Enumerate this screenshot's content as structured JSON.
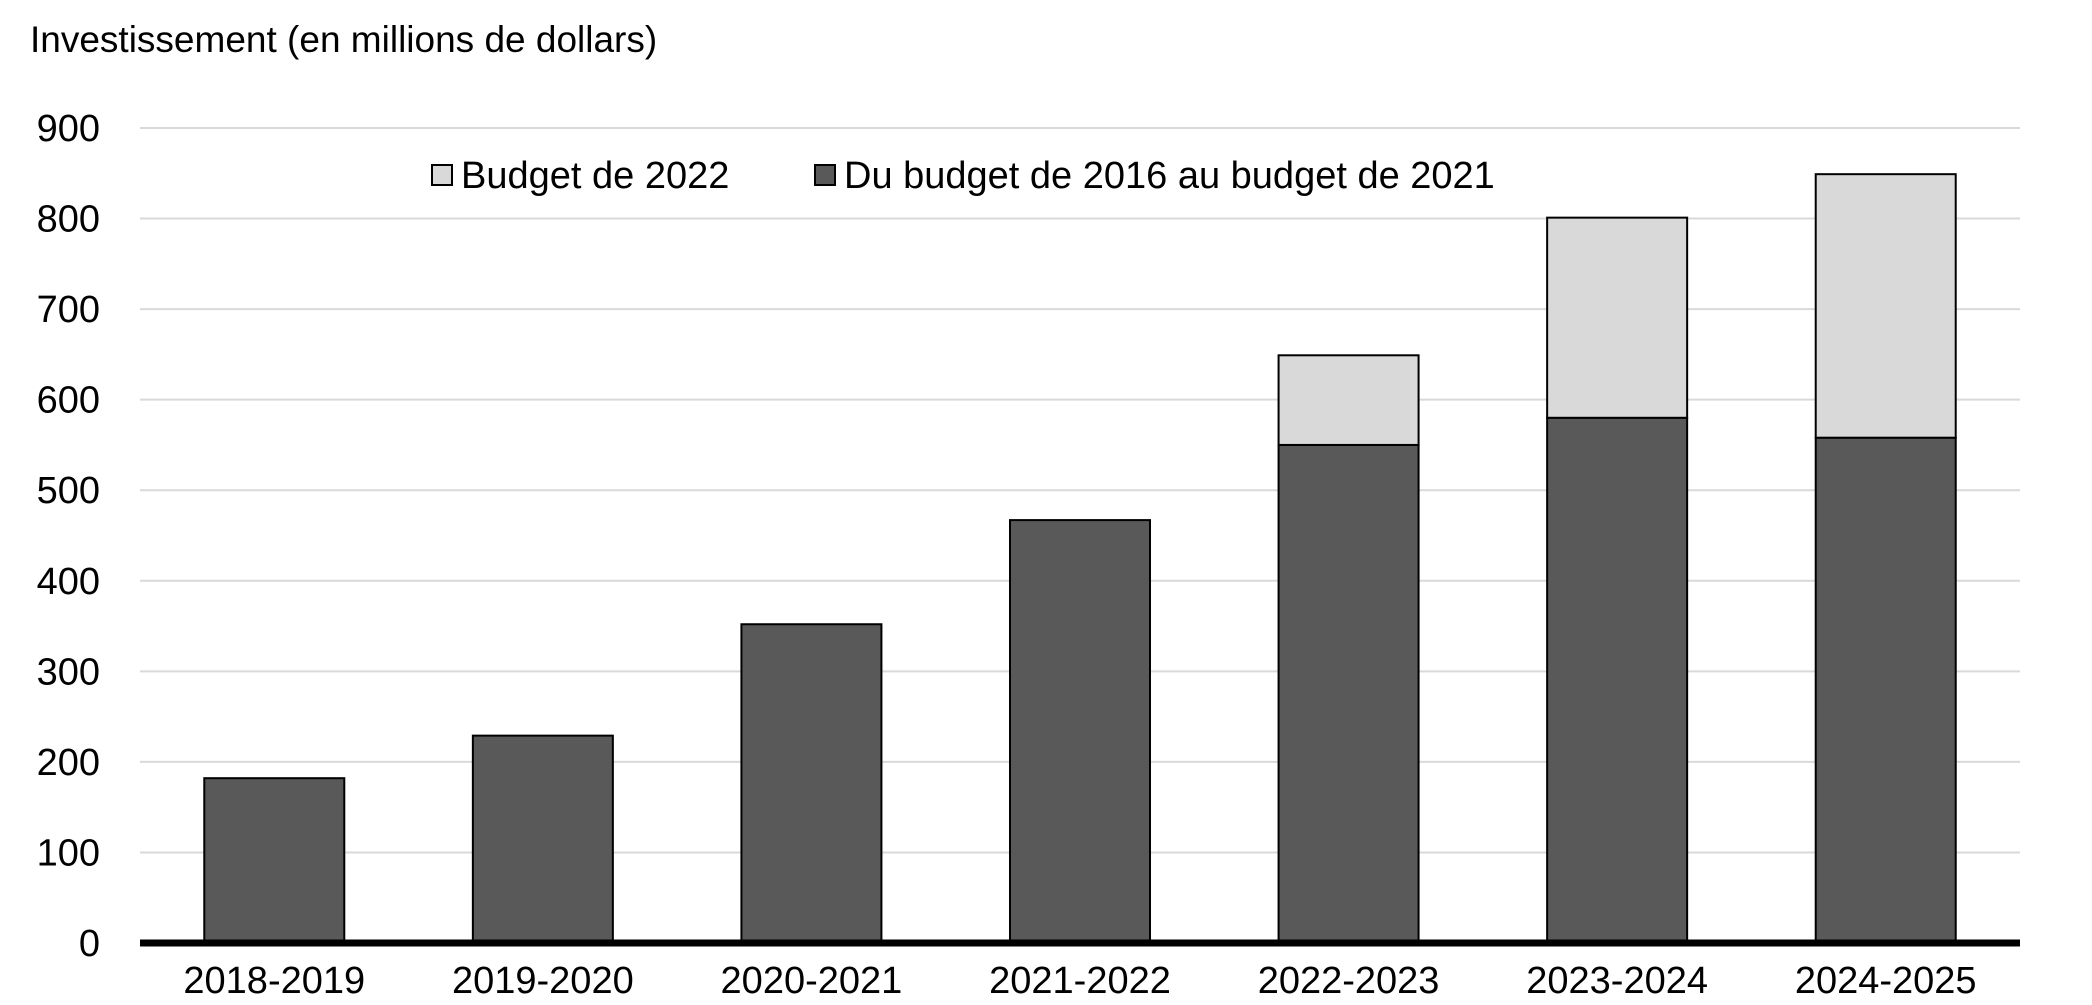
{
  "chart_data": {
    "type": "bar",
    "stacked": true,
    "title": "",
    "ylabel": "Investissement (en millions de dollars)",
    "xlabel": "",
    "categories": [
      "2018-2019",
      "2019-2020",
      "2020-2021",
      "2021-2022",
      "2022-2023",
      "2023-2024",
      "2024-2025"
    ],
    "series": [
      {
        "name": "Du budget de 2016 au budget de 2021",
        "color": "#595959",
        "values": [
          182,
          229,
          352,
          467,
          550,
          580,
          558
        ]
      },
      {
        "name": "Budget de 2022",
        "color": "#d9d9d9",
        "values": [
          0,
          0,
          0,
          0,
          99,
          221,
          291
        ]
      }
    ],
    "legend_order": [
      1,
      0
    ],
    "ylim": [
      0,
      900
    ],
    "yticks": [
      0,
      100,
      200,
      300,
      400,
      500,
      600,
      700,
      800,
      900
    ],
    "grid": true,
    "legend_position": "top-center"
  }
}
